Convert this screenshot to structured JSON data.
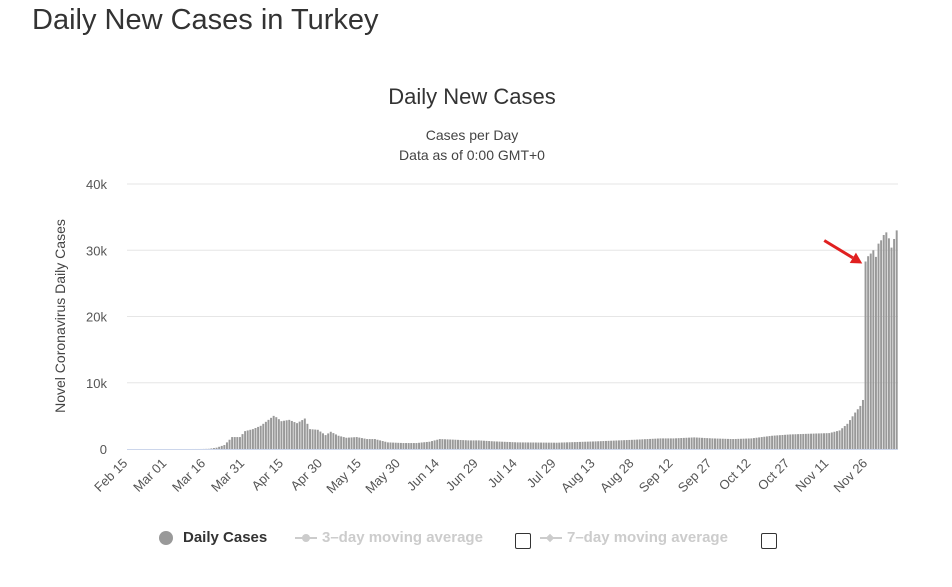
{
  "page": {
    "title": "Daily New Cases in Turkey"
  },
  "chart_data": {
    "type": "bar",
    "title": "Daily New Cases",
    "subtitle_lines": [
      "Cases per Day",
      "Data as of 0:00 GMT+0"
    ],
    "ylabel": "Novel Coronavirus Daily Cases",
    "xlabel": "",
    "ylim": [
      0,
      40000
    ],
    "yticks": [
      {
        "value": 0,
        "label": "0"
      },
      {
        "value": 10000,
        "label": "10k"
      },
      {
        "value": 20000,
        "label": "20k"
      },
      {
        "value": 30000,
        "label": "30k"
      },
      {
        "value": 40000,
        "label": "40k"
      }
    ],
    "date_start": "2020-02-15",
    "xtick_labels": [
      "Feb 15",
      "Mar 01",
      "Mar 16",
      "Mar 31",
      "Apr 15",
      "Apr 30",
      "May 15",
      "May 30",
      "Jun 14",
      "Jun 29",
      "Jul 14",
      "Jul 29",
      "Aug 13",
      "Aug 28",
      "Sep 12",
      "Sep 27",
      "Oct 12",
      "Oct 27",
      "Nov 11",
      "Nov 26"
    ],
    "grid": true,
    "bar_color": "#999999",
    "anchors": [
      [
        "2020-02-15",
        0
      ],
      [
        "2020-03-10",
        0
      ],
      [
        "2020-03-11",
        1
      ],
      [
        "2020-03-14",
        5
      ],
      [
        "2020-03-17",
        30
      ],
      [
        "2020-03-20",
        200
      ],
      [
        "2020-03-23",
        600
      ],
      [
        "2020-03-26",
        1800
      ],
      [
        "2020-03-29",
        1800
      ],
      [
        "2020-03-31",
        2700
      ],
      [
        "2020-04-03",
        3000
      ],
      [
        "2020-04-06",
        3500
      ],
      [
        "2020-04-08",
        4100
      ],
      [
        "2020-04-11",
        5000
      ],
      [
        "2020-04-12",
        4800
      ],
      [
        "2020-04-14",
        4200
      ],
      [
        "2020-04-17",
        4400
      ],
      [
        "2020-04-20",
        3900
      ],
      [
        "2020-04-23",
        4600
      ],
      [
        "2020-04-25",
        3000
      ],
      [
        "2020-04-28",
        2900
      ],
      [
        "2020-05-01",
        2100
      ],
      [
        "2020-05-03",
        2600
      ],
      [
        "2020-05-06",
        2000
      ],
      [
        "2020-05-09",
        1700
      ],
      [
        "2020-05-13",
        1800
      ],
      [
        "2020-05-17",
        1500
      ],
      [
        "2020-05-20",
        1500
      ],
      [
        "2020-05-25",
        1000
      ],
      [
        "2020-05-31",
        900
      ],
      [
        "2020-06-05",
        900
      ],
      [
        "2020-06-10",
        1100
      ],
      [
        "2020-06-14",
        1500
      ],
      [
        "2020-06-20",
        1400
      ],
      [
        "2020-06-25",
        1300
      ],
      [
        "2020-06-29",
        1300
      ],
      [
        "2020-07-05",
        1150
      ],
      [
        "2020-07-14",
        1000
      ],
      [
        "2020-07-29",
        950
      ],
      [
        "2020-08-13",
        1150
      ],
      [
        "2020-08-28",
        1400
      ],
      [
        "2020-09-07",
        1600
      ],
      [
        "2020-09-12",
        1600
      ],
      [
        "2020-09-20",
        1750
      ],
      [
        "2020-09-27",
        1600
      ],
      [
        "2020-10-05",
        1500
      ],
      [
        "2020-10-12",
        1600
      ],
      [
        "2020-10-20",
        2000
      ],
      [
        "2020-10-27",
        2200
      ],
      [
        "2020-11-03",
        2300
      ],
      [
        "2020-11-11",
        2400
      ],
      [
        "2020-11-15",
        2800
      ],
      [
        "2020-11-18",
        3800
      ],
      [
        "2020-11-21",
        5500
      ],
      [
        "2020-11-23",
        6500
      ],
      [
        "2020-11-24",
        7400
      ],
      [
        "2020-11-25",
        28300
      ],
      [
        "2020-11-26",
        29100
      ],
      [
        "2020-11-27",
        29500
      ],
      [
        "2020-11-28",
        30000
      ],
      [
        "2020-11-29",
        29000
      ],
      [
        "2020-11-30",
        31000
      ],
      [
        "2020-12-01",
        31500
      ],
      [
        "2020-12-02",
        32300
      ],
      [
        "2020-12-03",
        32700
      ],
      [
        "2020-12-04",
        31800
      ],
      [
        "2020-12-05",
        30400
      ],
      [
        "2020-12-06",
        31700
      ],
      [
        "2020-12-07",
        33000
      ]
    ]
  },
  "legend": {
    "items": [
      {
        "label": "Daily Cases",
        "active": true
      },
      {
        "label": "3–day moving average",
        "active": false
      },
      {
        "label": "7–day moving average",
        "active": false
      }
    ]
  },
  "annotation": {
    "arrow_color": "#e02020",
    "arrow_target": [
      "2020-11-25",
      28300
    ]
  }
}
